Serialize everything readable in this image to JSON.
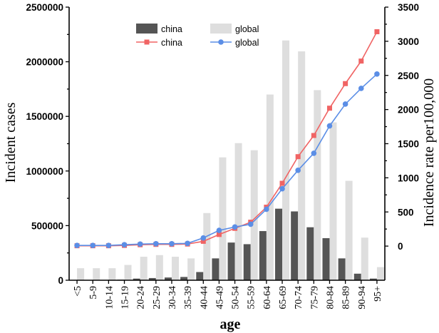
{
  "chart_data": {
    "type": "bar",
    "xlabel": "age",
    "ylabel_left": "Incident cases",
    "ylabel_right": "Incidence rate per100,000",
    "categories": [
      "<5",
      "5-9",
      "10-14",
      "15-19",
      "20-24",
      "25-29",
      "30-34",
      "35-39",
      "40-44",
      "45-49",
      "50-54",
      "55-59",
      "60-64",
      "65-69",
      "70-74",
      "75-79",
      "80-84",
      "85-89",
      "90-94",
      "95+"
    ],
    "ylim_left": [
      0,
      2500000
    ],
    "ylim_right": [
      -500,
      3500
    ],
    "yticks_left": [
      "0",
      "500000",
      "1000000",
      "1500000",
      "2000000",
      "2500000"
    ],
    "yticks_right": [
      "0",
      "500",
      "1000",
      "1500",
      "2000",
      "2500",
      "3000",
      "3500"
    ],
    "bar_series": [
      {
        "name": "china",
        "color": "#555555",
        "values": [
          2000,
          2000,
          2000,
          5000,
          15000,
          20000,
          25000,
          30000,
          75000,
          200000,
          345000,
          330000,
          450000,
          655000,
          630000,
          485000,
          385000,
          200000,
          60000,
          15000
        ]
      },
      {
        "name": "global",
        "color": "#dedede",
        "values": [
          110000,
          110000,
          110000,
          140000,
          215000,
          230000,
          215000,
          200000,
          615000,
          1125000,
          1255000,
          1190000,
          1700000,
          2195000,
          2095000,
          1740000,
          1445000,
          910000,
          390000,
          120000
        ]
      }
    ],
    "line_series": [
      {
        "name": "china",
        "color": "#f06464",
        "marker": "square",
        "values": [
          5,
          5,
          5,
          10,
          20,
          25,
          25,
          30,
          70,
          170,
          260,
          350,
          570,
          920,
          1310,
          1620,
          2020,
          2380,
          2710,
          3140
        ]
      },
      {
        "name": "global",
        "color": "#5b8ee6",
        "marker": "circle",
        "values": [
          10,
          10,
          10,
          20,
          30,
          35,
          35,
          40,
          120,
          230,
          280,
          320,
          540,
          840,
          1110,
          1360,
          1760,
          2080,
          2310,
          2520
        ]
      }
    ],
    "legend": {
      "placement": "top-left",
      "items": [
        {
          "label": "china",
          "kind": "bar",
          "color": "#555555"
        },
        {
          "label": "global",
          "kind": "bar",
          "color": "#dedede"
        },
        {
          "label": "china",
          "kind": "line",
          "color": "#f06464",
          "marker": "square"
        },
        {
          "label": "global",
          "kind": "line",
          "color": "#5b8ee6",
          "marker": "circle"
        }
      ]
    },
    "grid": false
  }
}
